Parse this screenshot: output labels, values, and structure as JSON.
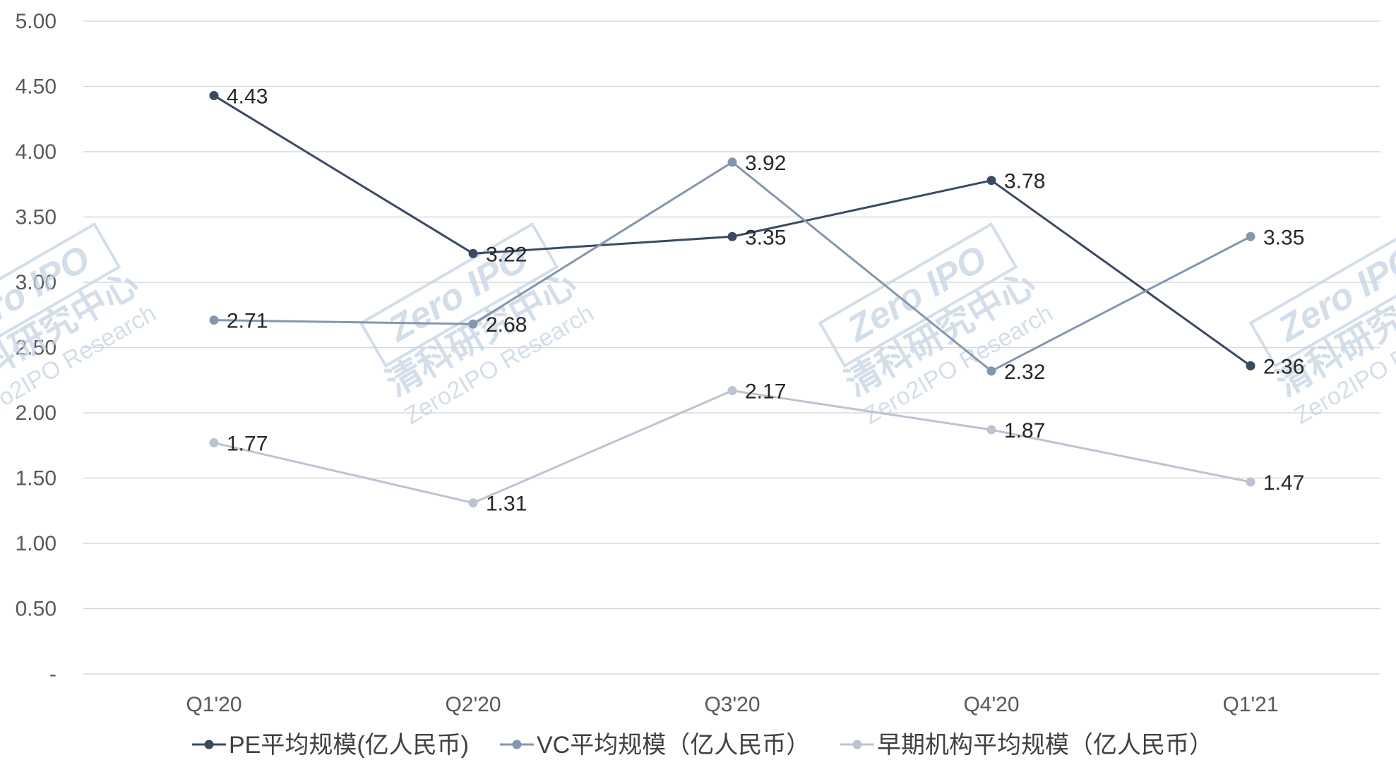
{
  "chart_data": {
    "type": "line",
    "title": "",
    "xlabel": "",
    "ylabel": "",
    "categories": [
      "Q1'20",
      "Q2'20",
      "Q3'20",
      "Q4'20",
      "Q1'21"
    ],
    "ylim": [
      0,
      5
    ],
    "y_ticks": [
      {
        "value": 0,
        "label": "-"
      },
      {
        "value": 0.5,
        "label": "0.50"
      },
      {
        "value": 1.0,
        "label": "1.00"
      },
      {
        "value": 1.5,
        "label": "1.50"
      },
      {
        "value": 2.0,
        "label": "2.00"
      },
      {
        "value": 2.5,
        "label": "2.50"
      },
      {
        "value": 3.0,
        "label": "3.00"
      },
      {
        "value": 3.5,
        "label": "3.50"
      },
      {
        "value": 4.0,
        "label": "4.00"
      },
      {
        "value": 4.5,
        "label": "4.50"
      },
      {
        "value": 5.0,
        "label": "5.00"
      }
    ],
    "grid": true,
    "legend_position": "bottom",
    "series": [
      {
        "name": "PE平均规模(亿人民币)",
        "color": "#3b4a63",
        "values": [
          4.43,
          3.22,
          3.35,
          3.78,
          2.36
        ],
        "labels": [
          "4.43",
          "3.22",
          "3.35",
          "3.78",
          "2.36"
        ]
      },
      {
        "name": "VC平均规模（亿人民币）",
        "color": "#8596b0",
        "values": [
          2.71,
          2.68,
          3.92,
          2.32,
          3.35
        ],
        "labels": [
          "2.71",
          "2.68",
          "3.92",
          "2.32",
          "3.35"
        ]
      },
      {
        "name": "早期机构平均规模（亿人民币）",
        "color": "#bcc3d1",
        "values": [
          1.77,
          1.31,
          2.17,
          1.87,
          1.47
        ],
        "labels": [
          "1.77",
          "1.31",
          "2.17",
          "1.87",
          "1.47"
        ]
      }
    ]
  },
  "watermark": {
    "logo_text": "Zero IPO",
    "cn_text": "清科研究中心",
    "en_text": "Zero2IPO Research",
    "color": "#c5d3e3"
  }
}
